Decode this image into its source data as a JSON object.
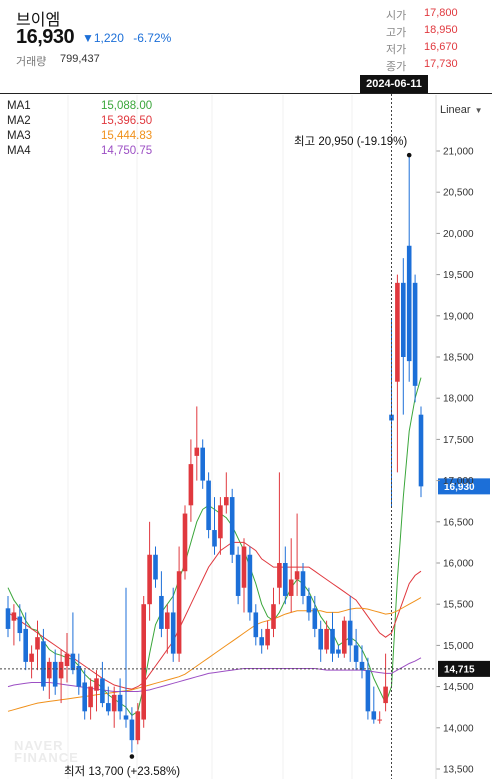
{
  "header": {
    "stock_name": "브이엠",
    "price": "16,930",
    "change": "▼1,220",
    "change_pct": "-6.72%",
    "volume_label": "거래량",
    "volume": "799,437",
    "ohlc": [
      {
        "label": "시가",
        "value": "17,800"
      },
      {
        "label": "고가",
        "value": "18,950"
      },
      {
        "label": "저가",
        "value": "16,670"
      },
      {
        "label": "종가",
        "value": "17,730"
      }
    ]
  },
  "crosshair": {
    "date": "2024-06-11",
    "price_label": "14,715",
    "price": 14715
  },
  "scale_button": "Linear",
  "ma_legend": [
    {
      "name": "MA1",
      "value": "15,088.00",
      "color": "#3aa63a"
    },
    {
      "name": "MA2",
      "value": "15,396.50",
      "color": "#e0383e"
    },
    {
      "name": "MA3",
      "value": "15,444.83",
      "color": "#f0901a"
    },
    {
      "name": "MA4",
      "value": "14,750.75",
      "color": "#9c4fc4"
    }
  ],
  "colors": {
    "up": "#e0383e",
    "down": "#1c6fd8",
    "accent": "#1c6fd8"
  },
  "watermark": {
    "line1": "NAVER",
    "line2": "FINANCE"
  },
  "chart_data": {
    "type": "candlestick",
    "ylim": [
      13500,
      21500
    ],
    "y_ticks": [
      "21,000",
      "20,500",
      "20,000",
      "19,500",
      "19,000",
      "18,500",
      "18,000",
      "17,500",
      "17,000",
      "16,500",
      "16,000",
      "15,500",
      "15,000",
      "14,500",
      "14,000",
      "13,500"
    ],
    "y_tick_values": [
      21000,
      20500,
      20000,
      19500,
      19000,
      18500,
      18000,
      17500,
      17000,
      16500,
      16000,
      15500,
      15000,
      14500,
      14000,
      13500
    ],
    "last_price": 16930,
    "last_price_label": "16,930",
    "annotations": {
      "high": {
        "label": "최고 20,950 (-19.19%)",
        "value": 20950,
        "index": 68
      },
      "low": {
        "label": "최저 13,700 (+23.58%)",
        "value": 13700,
        "index": 21
      }
    },
    "candles": [
      {
        "o": 15450,
        "h": 15600,
        "l": 15100,
        "c": 15200
      },
      {
        "o": 15300,
        "h": 15500,
        "l": 15000,
        "c": 15400
      },
      {
        "o": 15350,
        "h": 15500,
        "l": 15050,
        "c": 15150
      },
      {
        "o": 15200,
        "h": 15400,
        "l": 14700,
        "c": 14800
      },
      {
        "o": 14800,
        "h": 15000,
        "l": 14600,
        "c": 14900
      },
      {
        "o": 14950,
        "h": 15300,
        "l": 14700,
        "c": 15100
      },
      {
        "o": 15050,
        "h": 15200,
        "l": 14450,
        "c": 14500
      },
      {
        "o": 14600,
        "h": 14850,
        "l": 14350,
        "c": 14800
      },
      {
        "o": 14800,
        "h": 14950,
        "l": 14400,
        "c": 14500
      },
      {
        "o": 14600,
        "h": 14950,
        "l": 14300,
        "c": 14800
      },
      {
        "o": 14750,
        "h": 15150,
        "l": 14550,
        "c": 14900
      },
      {
        "o": 14900,
        "h": 15400,
        "l": 14650,
        "c": 14700
      },
      {
        "o": 14750,
        "h": 14900,
        "l": 14400,
        "c": 14500
      },
      {
        "o": 14550,
        "h": 14700,
        "l": 14100,
        "c": 14200
      },
      {
        "o": 14250,
        "h": 14600,
        "l": 14100,
        "c": 14500
      },
      {
        "o": 14450,
        "h": 14700,
        "l": 14200,
        "c": 14600
      },
      {
        "o": 14600,
        "h": 14800,
        "l": 14250,
        "c": 14300
      },
      {
        "o": 14300,
        "h": 14500,
        "l": 14150,
        "c": 14200
      },
      {
        "o": 14200,
        "h": 14500,
        "l": 14000,
        "c": 14400
      },
      {
        "o": 14400,
        "h": 14600,
        "l": 14100,
        "c": 14200
      },
      {
        "o": 14150,
        "h": 15700,
        "l": 14000,
        "c": 14100
      },
      {
        "o": 14100,
        "h": 14250,
        "l": 13700,
        "c": 13850
      },
      {
        "o": 13850,
        "h": 14300,
        "l": 13800,
        "c": 14200
      },
      {
        "o": 14100,
        "h": 15600,
        "l": 14000,
        "c": 15500
      },
      {
        "o": 15500,
        "h": 16500,
        "l": 15300,
        "c": 16100
      },
      {
        "o": 16100,
        "h": 16200,
        "l": 15700,
        "c": 15800
      },
      {
        "o": 15600,
        "h": 15900,
        "l": 15100,
        "c": 15200
      },
      {
        "o": 15200,
        "h": 15500,
        "l": 14900,
        "c": 15400
      },
      {
        "o": 15400,
        "h": 15700,
        "l": 14800,
        "c": 14900
      },
      {
        "o": 14900,
        "h": 16200,
        "l": 14800,
        "c": 15900
      },
      {
        "o": 15900,
        "h": 16700,
        "l": 15800,
        "c": 16600
      },
      {
        "o": 16700,
        "h": 17500,
        "l": 16500,
        "c": 17200
      },
      {
        "o": 17300,
        "h": 17900,
        "l": 17000,
        "c": 17400
      },
      {
        "o": 17400,
        "h": 17500,
        "l": 16900,
        "c": 17000
      },
      {
        "o": 17000,
        "h": 17100,
        "l": 16300,
        "c": 16400
      },
      {
        "o": 16400,
        "h": 16800,
        "l": 16100,
        "c": 16200
      },
      {
        "o": 16300,
        "h": 16800,
        "l": 16100,
        "c": 16700
      },
      {
        "o": 16700,
        "h": 17100,
        "l": 16600,
        "c": 16800
      },
      {
        "o": 16800,
        "h": 16900,
        "l": 16000,
        "c": 16100
      },
      {
        "o": 16100,
        "h": 16200,
        "l": 15500,
        "c": 15600
      },
      {
        "o": 15700,
        "h": 16300,
        "l": 15400,
        "c": 16200
      },
      {
        "o": 16100,
        "h": 16200,
        "l": 15300,
        "c": 15400
      },
      {
        "o": 15400,
        "h": 15500,
        "l": 15000,
        "c": 15100
      },
      {
        "o": 15100,
        "h": 15200,
        "l": 14900,
        "c": 15000
      },
      {
        "o": 15000,
        "h": 15300,
        "l": 14950,
        "c": 15200
      },
      {
        "o": 15200,
        "h": 15700,
        "l": 15100,
        "c": 15500
      },
      {
        "o": 15700,
        "h": 17100,
        "l": 15500,
        "c": 16000
      },
      {
        "o": 16000,
        "h": 16200,
        "l": 15500,
        "c": 15600
      },
      {
        "o": 15600,
        "h": 16300,
        "l": 15400,
        "c": 15800
      },
      {
        "o": 15800,
        "h": 16600,
        "l": 15600,
        "c": 15900
      },
      {
        "o": 15900,
        "h": 16000,
        "l": 15500,
        "c": 15600
      },
      {
        "o": 15600,
        "h": 15700,
        "l": 15300,
        "c": 15400
      },
      {
        "o": 15450,
        "h": 15600,
        "l": 15100,
        "c": 15200
      },
      {
        "o": 15200,
        "h": 15300,
        "l": 14800,
        "c": 14950
      },
      {
        "o": 14950,
        "h": 15300,
        "l": 14900,
        "c": 15200
      },
      {
        "o": 15200,
        "h": 15400,
        "l": 14800,
        "c": 14900
      },
      {
        "o": 14950,
        "h": 15000,
        "l": 14850,
        "c": 14900
      },
      {
        "o": 14900,
        "h": 15350,
        "l": 14850,
        "c": 15300
      },
      {
        "o": 15300,
        "h": 15600,
        "l": 14800,
        "c": 15000
      },
      {
        "o": 15000,
        "h": 15200,
        "l": 14700,
        "c": 14800
      },
      {
        "o": 14800,
        "h": 15000,
        "l": 14600,
        "c": 14700
      },
      {
        "o": 14700,
        "h": 14850,
        "l": 14100,
        "c": 14200
      },
      {
        "o": 14200,
        "h": 14500,
        "l": 14050,
        "c": 14100
      },
      {
        "o": 14100,
        "h": 14200,
        "l": 14050,
        "c": 14100
      },
      {
        "o": 14300,
        "h": 14900,
        "l": 14200,
        "c": 14500
      },
      {
        "o": 17800,
        "h": 18950,
        "l": 16670,
        "c": 17730
      },
      {
        "o": 18200,
        "h": 19500,
        "l": 17100,
        "c": 19400
      },
      {
        "o": 19400,
        "h": 19700,
        "l": 17800,
        "c": 18500
      },
      {
        "o": 19850,
        "h": 20950,
        "l": 18200,
        "c": 18450
      },
      {
        "o": 19400,
        "h": 19500,
        "l": 17950,
        "c": 18150
      },
      {
        "o": 17800,
        "h": 17900,
        "l": 16800,
        "c": 16930
      }
    ],
    "ma": [
      {
        "name": "MA1",
        "color": "#3aa63a",
        "values": [
          15700,
          15550,
          15450,
          15300,
          15200,
          15180,
          15050,
          14950,
          14900,
          14880,
          14850,
          14830,
          14750,
          14650,
          14580,
          14550,
          14480,
          14400,
          14350,
          14300,
          14250,
          14150,
          14200,
          14500,
          14900,
          15250,
          15400,
          15500,
          15600,
          15800,
          16000,
          16250,
          16500,
          16650,
          16700,
          16650,
          16600,
          16550,
          16450,
          16300,
          16150,
          15950,
          15750,
          15500,
          15350,
          15300,
          15400,
          15550,
          15700,
          15800,
          15750,
          15650,
          15500,
          15350,
          15250,
          15150,
          15000,
          15050,
          15100,
          15050,
          14950,
          14800,
          14600,
          14450,
          14300,
          14500,
          15800,
          16800,
          17600,
          18000,
          18250
        ]
      },
      {
        "name": "MA2",
        "color": "#e0383e",
        "values": [
          15400,
          15350,
          15300,
          15250,
          15200,
          15150,
          15100,
          15050,
          15000,
          14950,
          14900,
          14850,
          14800,
          14750,
          14700,
          14650,
          14600,
          14560,
          14520,
          14500,
          14480,
          14470,
          14500,
          14550,
          14650,
          14750,
          14850,
          14950,
          15050,
          15200,
          15350,
          15500,
          15650,
          15800,
          15950,
          16050,
          16150,
          16200,
          16250,
          16250,
          16250,
          16200,
          16150,
          16050,
          16000,
          15950,
          15950,
          15950,
          15950,
          15950,
          15950,
          15950,
          15900,
          15850,
          15800,
          15750,
          15700,
          15650,
          15600,
          15550,
          15450,
          15350,
          15250,
          15150,
          15100,
          15150,
          15350,
          15550,
          15750,
          15850,
          15900
        ]
      },
      {
        "name": "MA3",
        "color": "#f0901a",
        "values": [
          14200,
          14220,
          14240,
          14260,
          14280,
          14300,
          14310,
          14320,
          14330,
          14340,
          14350,
          14360,
          14370,
          14380,
          14390,
          14400,
          14410,
          14420,
          14430,
          14440,
          14450,
          14460,
          14480,
          14500,
          14520,
          14540,
          14560,
          14580,
          14600,
          14620,
          14650,
          14700,
          14750,
          14800,
          14850,
          14900,
          14950,
          15000,
          15050,
          15100,
          15150,
          15200,
          15250,
          15280,
          15300,
          15320,
          15350,
          15380,
          15400,
          15420,
          15420,
          15420,
          15420,
          15420,
          15400,
          15400,
          15400,
          15420,
          15440,
          15450,
          15450,
          15440,
          15420,
          15400,
          15380,
          15390,
          15420,
          15460,
          15500,
          15540,
          15580
        ]
      },
      {
        "name": "MA4",
        "color": "#9c4fc4",
        "values": [
          14500,
          14520,
          14530,
          14540,
          14550,
          14550,
          14550,
          14550,
          14540,
          14530,
          14520,
          14510,
          14500,
          14490,
          14480,
          14470,
          14460,
          14450,
          14440,
          14440,
          14440,
          14440,
          14440,
          14450,
          14460,
          14480,
          14500,
          14520,
          14540,
          14560,
          14580,
          14600,
          14620,
          14640,
          14660,
          14670,
          14680,
          14690,
          14700,
          14710,
          14720,
          14720,
          14720,
          14720,
          14720,
          14720,
          14720,
          14720,
          14720,
          14720,
          14720,
          14720,
          14720,
          14710,
          14700,
          14700,
          14700,
          14700,
          14700,
          14700,
          14700,
          14690,
          14680,
          14670,
          14660,
          14660,
          14700,
          14740,
          14780,
          14810,
          14850
        ]
      }
    ]
  }
}
